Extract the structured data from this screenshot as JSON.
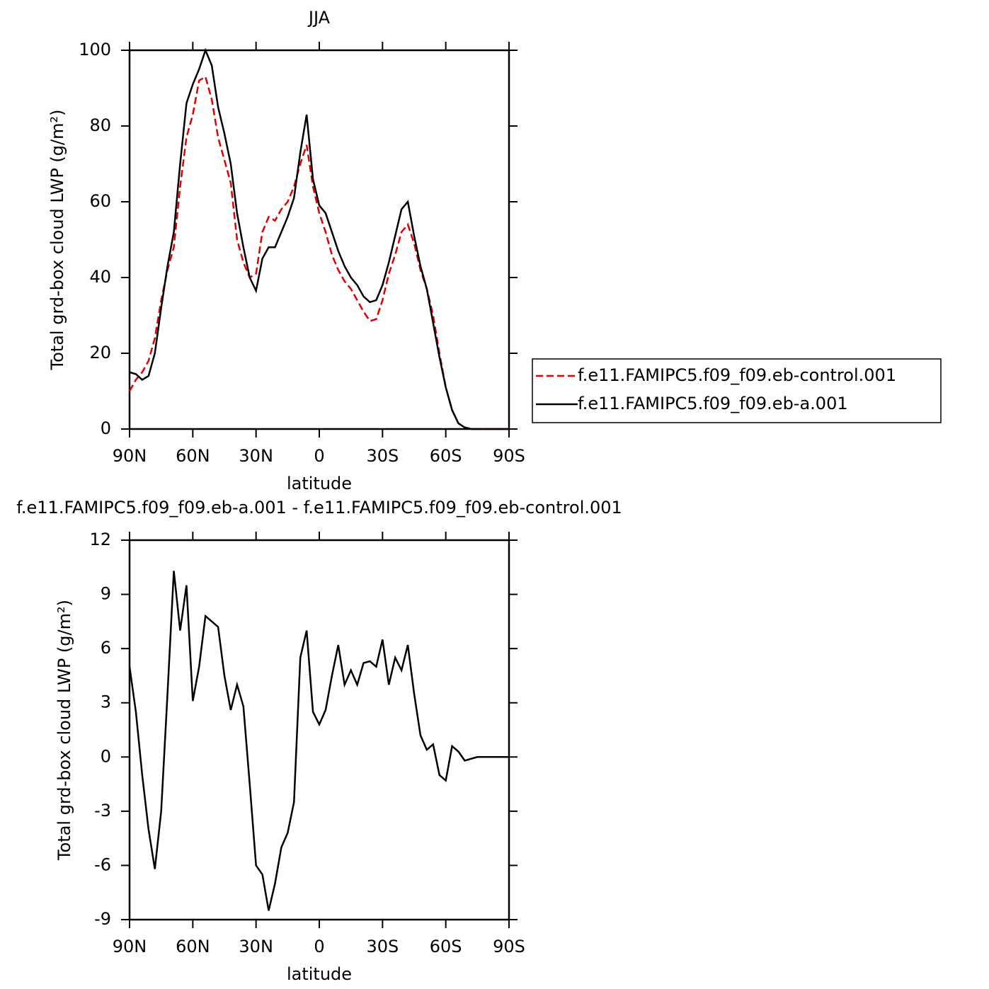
{
  "chart_data": [
    {
      "type": "line",
      "title": "JJA",
      "xlabel": "latitude",
      "ylabel": "Total grd-box cloud LWP (g/m²)",
      "x": [
        90,
        87,
        84,
        81,
        78,
        75,
        72,
        69,
        66,
        63,
        60,
        57,
        54,
        51,
        48,
        45,
        42,
        39,
        36,
        33,
        30,
        27,
        24,
        21,
        18,
        15,
        12,
        9,
        6,
        3,
        0,
        -3,
        -6,
        -9,
        -12,
        -15,
        -18,
        -21,
        -24,
        -27,
        -30,
        -33,
        -36,
        -39,
        -42,
        -45,
        -48,
        -51,
        -54,
        -57,
        -60,
        -63,
        -66,
        -69,
        -72,
        -75,
        -78,
        -81,
        -84,
        -87,
        -90
      ],
      "series": [
        {
          "name": "f.e11.FAMIPC5.f09_f09.eb-control.001",
          "color": "#e00000",
          "dashed": true,
          "values": [
            10,
            13,
            15,
            18,
            24,
            34,
            42,
            48,
            64,
            77,
            83,
            92,
            93,
            87,
            77,
            71,
            65,
            50,
            44,
            40,
            41,
            52,
            56,
            55,
            58,
            60,
            64,
            70,
            75,
            64,
            57,
            52,
            46,
            42,
            39,
            37,
            34,
            31,
            28.5,
            29,
            34,
            41,
            46,
            52,
            54,
            49,
            42,
            37,
            30,
            20,
            11,
            5,
            1.5,
            0.4,
            0,
            0,
            0,
            0,
            0,
            0,
            0
          ]
        },
        {
          "name": "f.e11.FAMIPC5.f09_f09.eb-a.001",
          "color": "#000000",
          "dashed": false,
          "values": [
            15,
            14.5,
            13,
            14,
            20,
            32,
            43,
            52,
            70,
            86,
            91,
            95,
            100,
            96,
            85,
            78,
            70,
            57,
            48,
            40,
            36.5,
            45,
            48,
            48,
            52,
            56,
            61,
            73,
            83,
            66,
            59,
            57,
            52,
            47,
            43,
            40,
            38,
            35,
            33.5,
            34,
            38,
            44,
            51,
            58,
            60,
            51,
            43,
            37,
            28,
            19,
            11,
            5,
            1.5,
            0.4,
            0,
            0,
            0,
            0,
            0,
            0,
            0
          ]
        }
      ],
      "xlim": [
        90,
        -90
      ],
      "xticks": [
        {
          "value": 90,
          "label": "90N"
        },
        {
          "value": 60,
          "label": "60N"
        },
        {
          "value": 30,
          "label": "30N"
        },
        0,
        {
          "value": -30,
          "label": "30S"
        },
        {
          "value": -60,
          "label": "60S"
        },
        {
          "value": -90,
          "label": "90S"
        }
      ],
      "ylim": [
        0,
        100
      ],
      "yticks": [
        0,
        20,
        40,
        60,
        80,
        100
      ],
      "legend": "right"
    },
    {
      "type": "line",
      "title": "f.e11.FAMIPC5.f09_f09.eb-a.001 - f.e11.FAMIPC5.f09_f09.eb-control.001",
      "xlabel": "latitude",
      "ylabel": "Total grd-box cloud LWP (g/m²)",
      "x": [
        90,
        87,
        84,
        81,
        78,
        75,
        72,
        69,
        66,
        63,
        60,
        57,
        54,
        51,
        48,
        45,
        42,
        39,
        36,
        33,
        30,
        27,
        24,
        21,
        18,
        15,
        12,
        9,
        6,
        3,
        0,
        -3,
        -6,
        -9,
        -12,
        -15,
        -18,
        -21,
        -24,
        -27,
        -30,
        -33,
        -36,
        -39,
        -42,
        -45,
        -48,
        -51,
        -54,
        -57,
        -60,
        -63,
        -66,
        -69,
        -72,
        -75,
        -78,
        -81,
        -84,
        -87,
        -90
      ],
      "values": [
        5,
        2.5,
        -1,
        -4,
        -6.2,
        -3,
        3.5,
        10.3,
        7,
        9.5,
        3.1,
        5,
        7.8,
        7.5,
        7.2,
        4.5,
        2.6,
        4,
        2.8,
        -1.5,
        -6,
        -6.5,
        -8.5,
        -7,
        -5,
        -4.2,
        -2.5,
        5.5,
        7,
        2.5,
        1.8,
        2.6,
        4.5,
        6.2,
        4,
        4.8,
        4,
        5.2,
        5.3,
        5,
        6.5,
        4,
        5.5,
        4.8,
        6.2,
        3.5,
        1.2,
        0.4,
        0.7,
        -1,
        -1.3,
        0.6,
        0.3,
        -0.2,
        -0.1,
        0,
        0,
        0,
        0,
        0,
        0
      ],
      "color": "#000000",
      "xlim": [
        90,
        -90
      ],
      "xticks": [
        {
          "value": 90,
          "label": "90N"
        },
        {
          "value": 60,
          "label": "60N"
        },
        {
          "value": 30,
          "label": "30N"
        },
        0,
        {
          "value": -30,
          "label": "30S"
        },
        {
          "value": -60,
          "label": "60S"
        },
        {
          "value": -90,
          "label": "90S"
        }
      ],
      "ylim": [
        -9,
        12
      ],
      "yticks": [
        -9,
        -6,
        -3,
        0,
        3,
        6,
        9,
        12
      ]
    }
  ]
}
